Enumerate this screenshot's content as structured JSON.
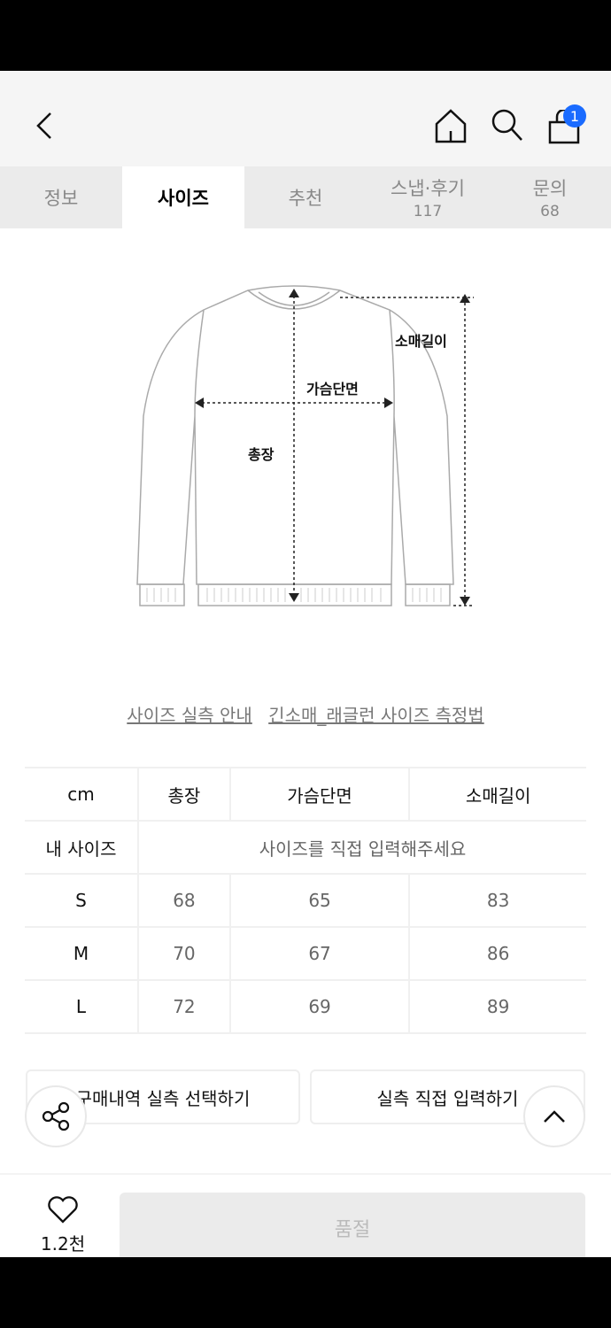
{
  "header": {
    "cart_count": "1"
  },
  "tabs": [
    {
      "label": "정보"
    },
    {
      "label": "사이즈",
      "active": true
    },
    {
      "label": "추천"
    },
    {
      "label": "스냅·후기",
      "count": "117"
    },
    {
      "label": "문의",
      "count": "68"
    }
  ],
  "diagram": {
    "sleeve": "소매길이",
    "chest": "가슴단면",
    "length": "총장"
  },
  "links": {
    "guide": "사이즈 실측 안내",
    "method": "긴소매_래글런 사이즈 측정법"
  },
  "size_table": {
    "headers": [
      "cm",
      "총장",
      "가슴단면",
      "소매길이"
    ],
    "my_size_label": "내 사이즈",
    "my_size_prompt": "사이즈를 직접 입력해주세요",
    "rows": [
      [
        "S",
        "68",
        "65",
        "83"
      ],
      [
        "M",
        "70",
        "67",
        "86"
      ],
      [
        "L",
        "72",
        "69",
        "89"
      ]
    ]
  },
  "buttons": {
    "purchase": "구매내역 실측 선택하기",
    "manual": "실측 직접 입력하기",
    "soldout": "품절"
  },
  "likes": "1.2천",
  "colors": {
    "badge": "#1a6bff",
    "tab_bg": "#ebebeb"
  }
}
